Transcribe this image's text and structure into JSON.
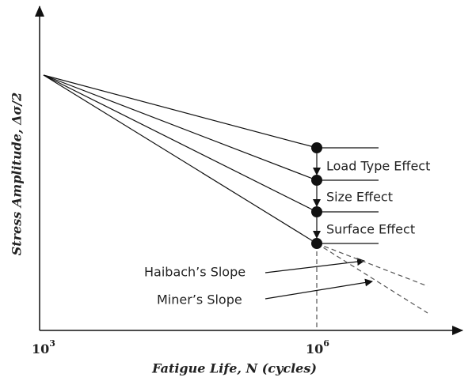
{
  "diagram": {
    "y_axis_label": "Stress Amplitude, Δσ/2",
    "x_axis_label": "Fatigue Life, N (cycles)",
    "x_ticks": [
      {
        "base": "10",
        "exponent": "3"
      },
      {
        "base": "10",
        "exponent": "6"
      }
    ],
    "effects": [
      "Load Type Effect",
      "Size Effect",
      "Surface Effect"
    ],
    "slopes": [
      "Haibach’s Slope",
      "Miner’s Slope"
    ]
  }
}
